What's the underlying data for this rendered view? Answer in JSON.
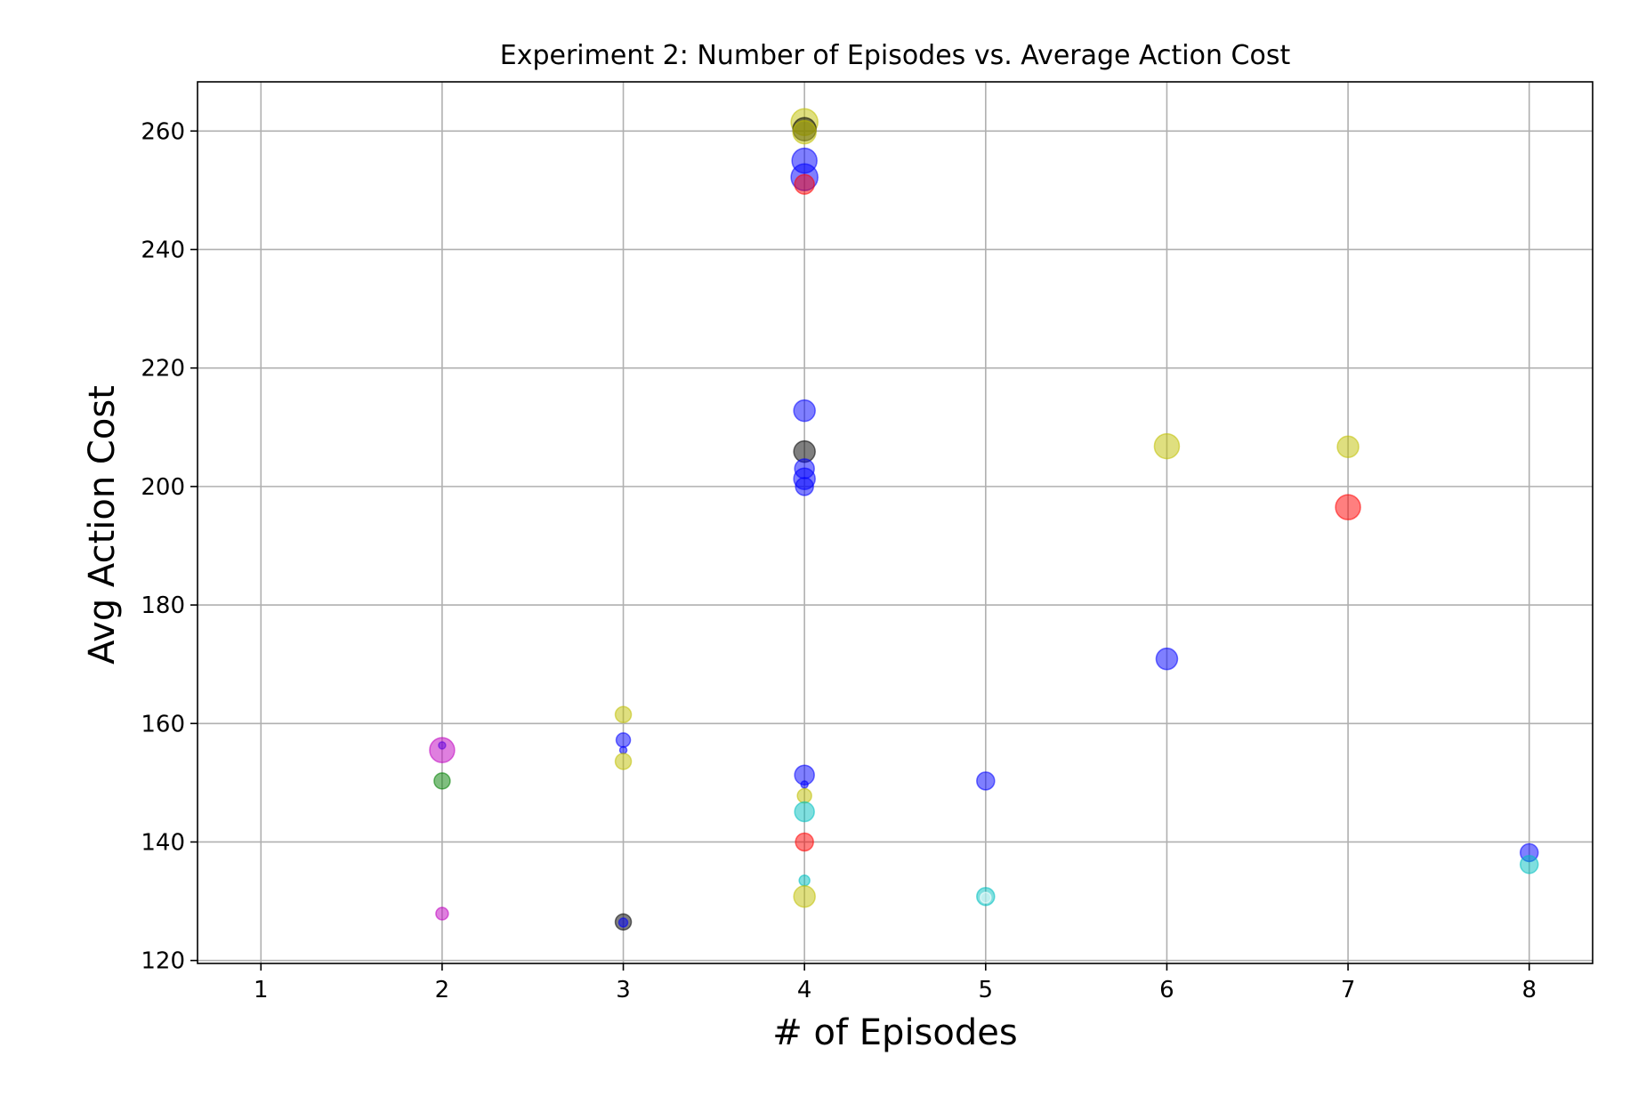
{
  "chart_data": {
    "type": "scatter",
    "title": "Experiment 2: Number of Episodes vs. Average Action Cost",
    "xlabel": "# of Episodes",
    "ylabel": "Avg Action Cost",
    "xlim": [
      0.65,
      8.35
    ],
    "ylim": [
      119.5,
      268.3
    ],
    "xticks": [
      1,
      2,
      3,
      4,
      5,
      6,
      7,
      8
    ],
    "yticks": [
      120,
      140,
      160,
      180,
      200,
      220,
      240,
      260
    ],
    "grid": true,
    "legend": "none",
    "points": [
      {
        "x": 4,
        "y": 261.5,
        "color": "#bfbf00",
        "size": 15
      },
      {
        "x": 4,
        "y": 260.3,
        "color": "#000000",
        "size": 13
      },
      {
        "x": 4,
        "y": 259.8,
        "color": "#bfbf00",
        "size": 13
      },
      {
        "x": 4,
        "y": 255.0,
        "color": "#0000ff",
        "size": 14
      },
      {
        "x": 4,
        "y": 252.2,
        "color": "#0000ff",
        "size": 15
      },
      {
        "x": 4,
        "y": 251.0,
        "color": "#ff0000",
        "size": 11
      },
      {
        "x": 4,
        "y": 212.8,
        "color": "#0000ff",
        "size": 12
      },
      {
        "x": 4,
        "y": 205.9,
        "color": "#000000",
        "size": 12
      },
      {
        "x": 4,
        "y": 203.0,
        "color": "#0000ff",
        "size": 11
      },
      {
        "x": 4,
        "y": 201.3,
        "color": "#0000ff",
        "size": 12
      },
      {
        "x": 4,
        "y": 200.0,
        "color": "#0000ff",
        "size": 10
      },
      {
        "x": 6,
        "y": 206.8,
        "color": "#bfbf00",
        "size": 14
      },
      {
        "x": 7,
        "y": 206.7,
        "color": "#bfbf00",
        "size": 12
      },
      {
        "x": 7,
        "y": 196.5,
        "color": "#ff0000",
        "size": 14
      },
      {
        "x": 6,
        "y": 170.9,
        "color": "#0000ff",
        "size": 12
      },
      {
        "x": 2,
        "y": 156.3,
        "color": "#0000ff",
        "size": 4
      },
      {
        "x": 2,
        "y": 155.5,
        "color": "#bf00bf",
        "size": 14
      },
      {
        "x": 2,
        "y": 150.3,
        "color": "#008000",
        "size": 9
      },
      {
        "x": 2,
        "y": 127.9,
        "color": "#bf00bf",
        "size": 7
      },
      {
        "x": 3,
        "y": 161.5,
        "color": "#bfbf00",
        "size": 9
      },
      {
        "x": 3,
        "y": 157.2,
        "color": "#0000ff",
        "size": 8
      },
      {
        "x": 3,
        "y": 155.5,
        "color": "#0000ff",
        "size": 4
      },
      {
        "x": 3,
        "y": 153.6,
        "color": "#bfbf00",
        "size": 9
      },
      {
        "x": 3,
        "y": 126.5,
        "color": "#000000",
        "size": 9
      },
      {
        "x": 3,
        "y": 126.4,
        "color": "#0000ff",
        "size": 5
      },
      {
        "x": 4,
        "y": 151.3,
        "color": "#0000ff",
        "size": 11
      },
      {
        "x": 4,
        "y": 149.7,
        "color": "#0000ff",
        "size": 4
      },
      {
        "x": 4,
        "y": 147.8,
        "color": "#bfbf00",
        "size": 8
      },
      {
        "x": 4,
        "y": 145.1,
        "color": "#00bfbf",
        "size": 11
      },
      {
        "x": 4,
        "y": 140.0,
        "color": "#ff0000",
        "size": 10
      },
      {
        "x": 4,
        "y": 133.5,
        "color": "#00bfbf",
        "size": 6
      },
      {
        "x": 4,
        "y": 130.8,
        "color": "#bfbf00",
        "size": 12
      },
      {
        "x": 5,
        "y": 150.3,
        "color": "#0000ff",
        "size": 10
      },
      {
        "x": 5,
        "y": 130.8,
        "color": "#00bfbf",
        "size": 10
      },
      {
        "x": 5,
        "y": 130.6,
        "color": "#ffffff",
        "size": 6
      },
      {
        "x": 8,
        "y": 138.2,
        "color": "#0000ff",
        "size": 10
      },
      {
        "x": 8,
        "y": 136.2,
        "color": "#00bfbf",
        "size": 10
      }
    ]
  }
}
